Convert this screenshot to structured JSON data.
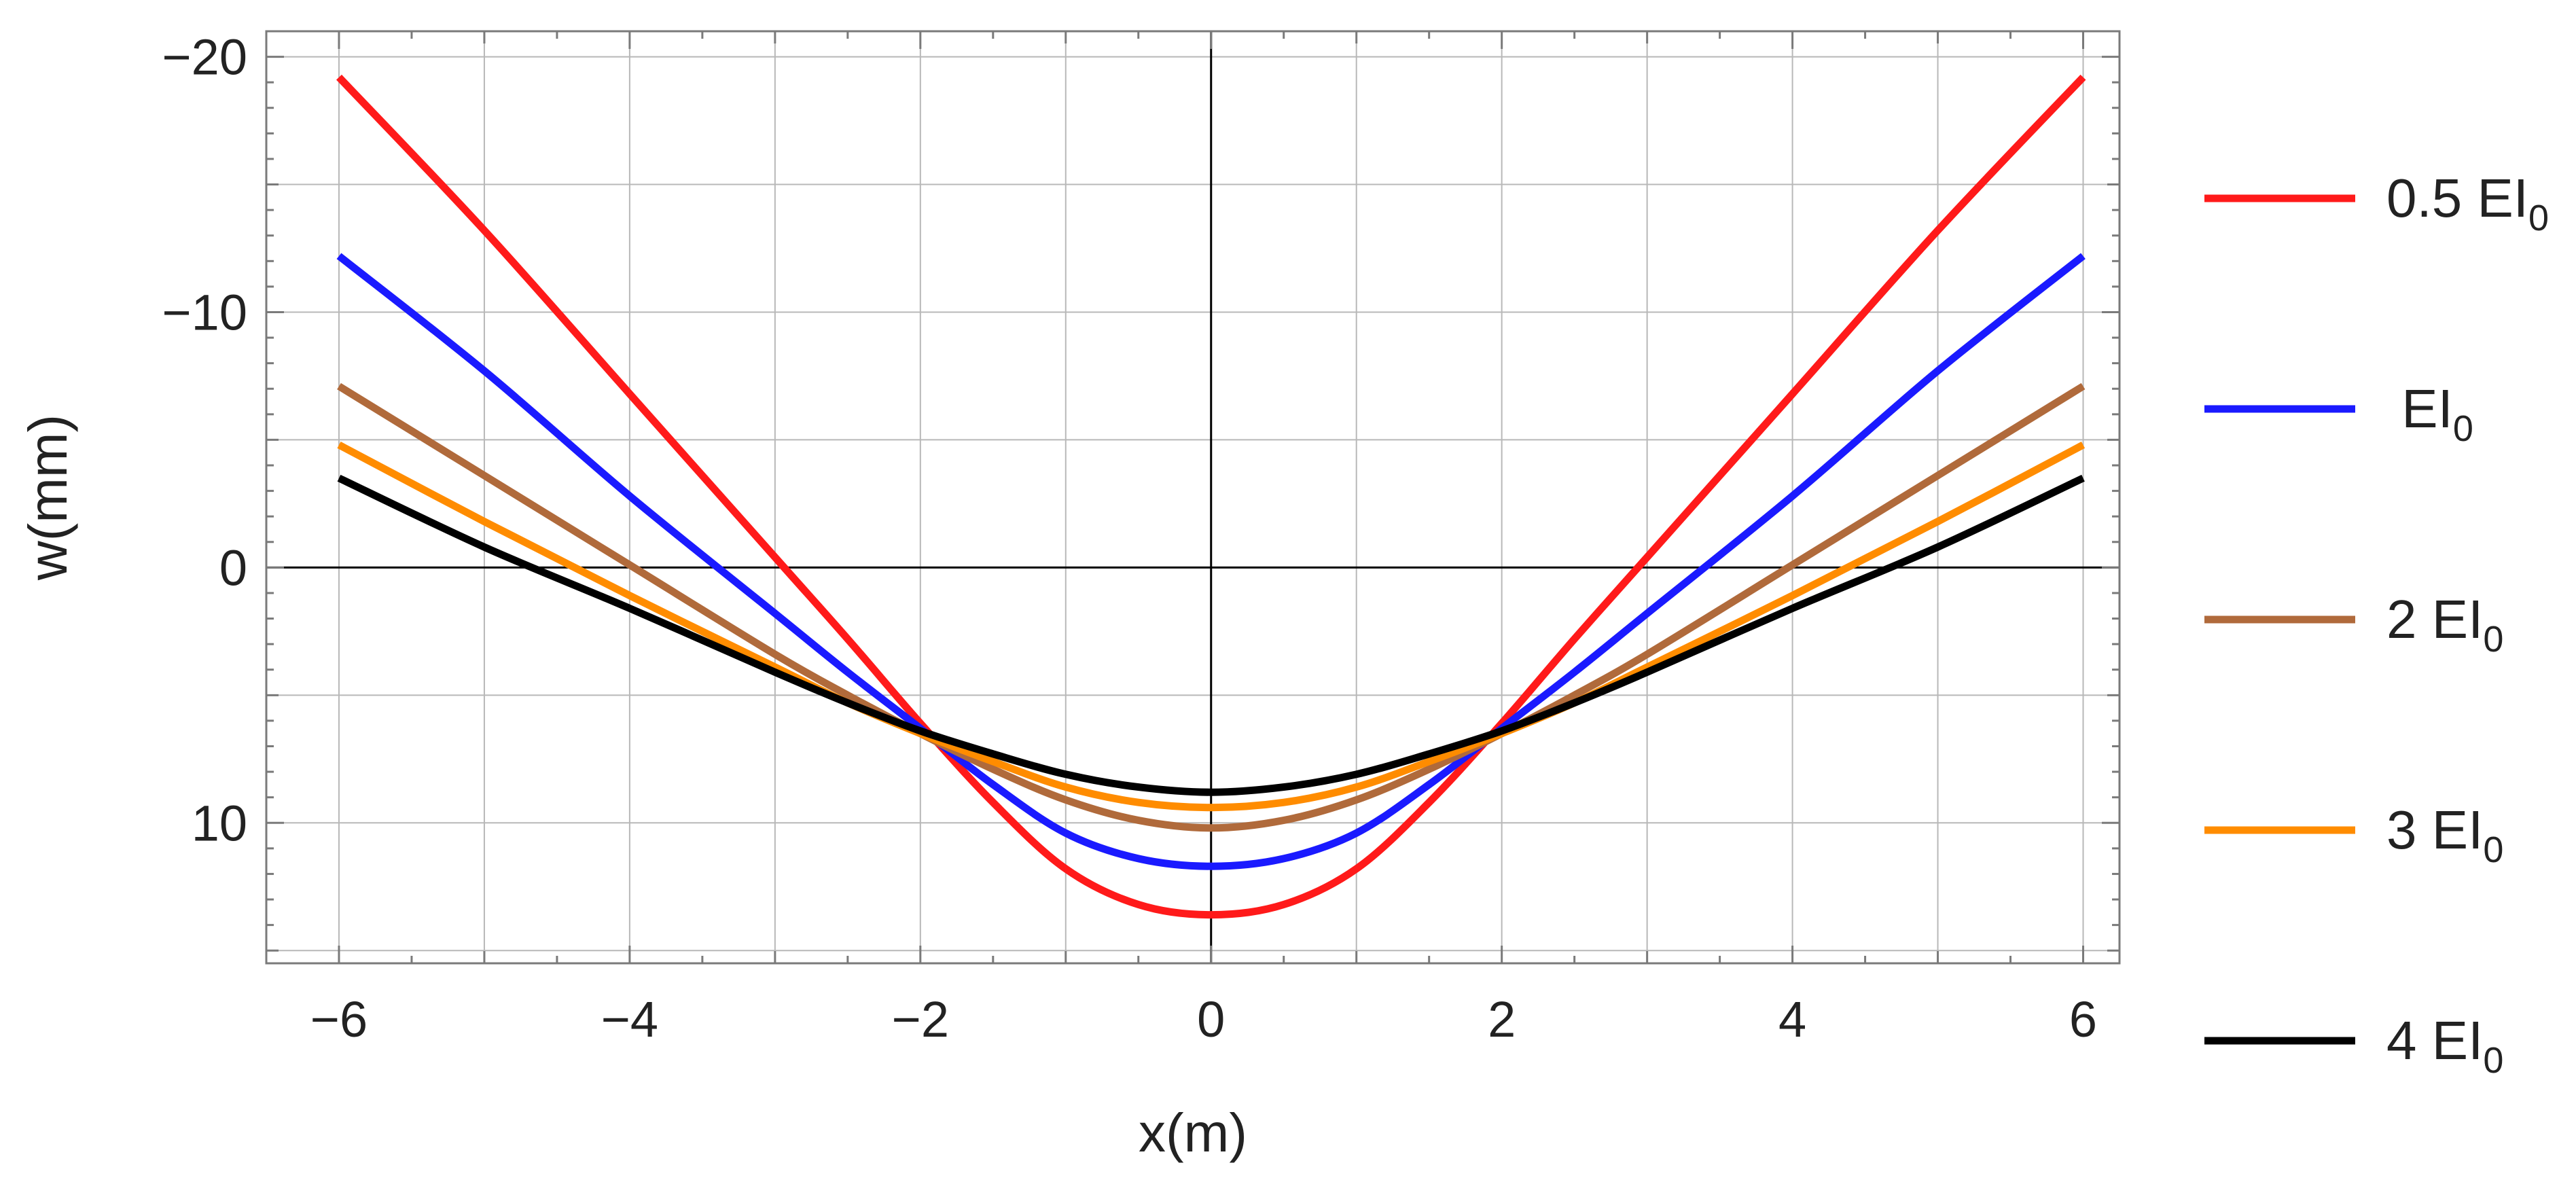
{
  "chart_data": {
    "type": "line",
    "title": "",
    "xlabel": "x(m)",
    "ylabel": "w(mm)",
    "xlim": [
      -6.5,
      6.25
    ],
    "ylim": [
      15.5,
      -21
    ],
    "y_axis_inverted": true,
    "grid": true,
    "frame": true,
    "legend_position": "right",
    "xticks": [
      -6,
      -4,
      -2,
      0,
      2,
      4,
      6
    ],
    "xtick_labels": [
      "−6",
      "−4",
      "−2",
      "0",
      "2",
      "4",
      "6"
    ],
    "yticks": [
      10,
      0,
      -10,
      -20
    ],
    "ytick_labels": [
      "10",
      "0",
      "−10",
      "−20"
    ],
    "series": [
      {
        "name": "0.5 EI0",
        "label_main": "0.5 EI",
        "label_sub": "0",
        "color": "#ff1a1a",
        "x": [
          -6,
          -5,
          -4,
          -3,
          -2.5,
          -2,
          -1.5,
          -1,
          -0.5,
          0,
          0.5,
          1,
          1.5,
          2,
          2.5,
          3,
          4,
          5,
          6
        ],
        "y": [
          -19.2,
          -13.2,
          -6.8,
          -0.4,
          2.8,
          6.1,
          9.2,
          11.8,
          13.2,
          13.6,
          13.2,
          11.8,
          9.2,
          6.1,
          2.8,
          -0.4,
          -6.8,
          -13.2,
          -19.2
        ]
      },
      {
        "name": "EI0",
        "label_main": " EI",
        "label_sub": "0",
        "color": "#1a1aff",
        "x": [
          -6,
          -5,
          -4,
          -3,
          -2.5,
          -2,
          -1.5,
          -1,
          -0.5,
          0,
          0.5,
          1,
          1.5,
          2,
          2.5,
          3,
          4,
          5,
          6
        ],
        "y": [
          -12.2,
          -7.7,
          -2.8,
          1.8,
          4.1,
          6.3,
          8.5,
          10.4,
          11.4,
          11.7,
          11.4,
          10.4,
          8.5,
          6.3,
          4.1,
          1.8,
          -2.8,
          -7.7,
          -12.2
        ]
      },
      {
        "name": "2 EI0",
        "label_main": "2 EI",
        "label_sub": "0",
        "color": "#b06a3b",
        "x": [
          -6,
          -5,
          -4,
          -3,
          -2.5,
          -2,
          -1.5,
          -1,
          -0.5,
          0,
          0.5,
          1,
          1.5,
          2,
          2.5,
          3,
          4,
          5,
          6
        ],
        "y": [
          -7.1,
          -3.6,
          -0.1,
          3.4,
          5.0,
          6.5,
          7.9,
          9.1,
          9.9,
          10.2,
          9.9,
          9.1,
          7.9,
          6.5,
          5.0,
          3.4,
          -0.1,
          -3.6,
          -7.1
        ]
      },
      {
        "name": "3 EI0",
        "label_main": "3 EI",
        "label_sub": "0",
        "color": "#ff8c00",
        "x": [
          -6,
          -5,
          -4,
          -3,
          -2.5,
          -2,
          -1.5,
          -1,
          -0.5,
          0,
          0.5,
          1,
          1.5,
          2,
          2.5,
          3,
          4,
          5,
          6
        ],
        "y": [
          -4.8,
          -1.8,
          1.1,
          3.9,
          5.3,
          6.5,
          7.6,
          8.6,
          9.2,
          9.4,
          9.2,
          8.6,
          7.6,
          6.5,
          5.3,
          3.9,
          1.1,
          -1.8,
          -4.8
        ]
      },
      {
        "name": "4 EI0",
        "label_main": "4 EI",
        "label_sub": "0",
        "color": "#000000",
        "x": [
          -6,
          -5,
          -4,
          -3,
          -2.5,
          -2,
          -1.5,
          -1,
          -0.5,
          0,
          0.5,
          1,
          1.5,
          2,
          2.5,
          3,
          4,
          5,
          6
        ],
        "y": [
          -3.5,
          -0.8,
          1.6,
          4.1,
          5.3,
          6.4,
          7.3,
          8.1,
          8.6,
          8.8,
          8.6,
          8.1,
          7.3,
          6.4,
          5.3,
          4.1,
          1.6,
          -0.8,
          -3.5
        ]
      }
    ]
  }
}
